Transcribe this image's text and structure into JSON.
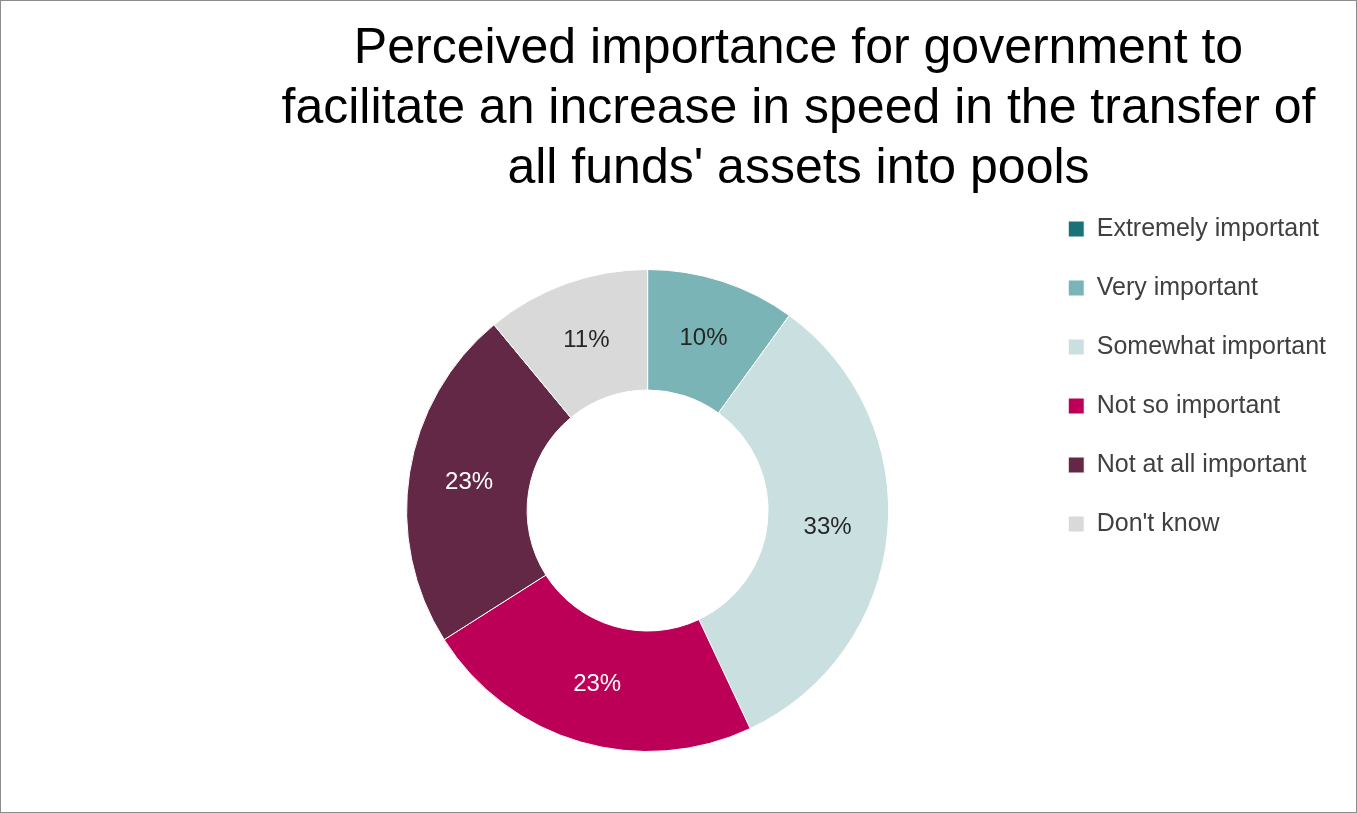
{
  "chart_data": {
    "type": "donut",
    "title": "Perceived importance for government to facilitate an increase in speed in the transfer of all funds' assets into pools",
    "categories": [
      "Extremely important",
      "Very important",
      "Somewhat important",
      "Not so important",
      "Not at all important",
      "Don't know"
    ],
    "values": [
      0,
      10,
      33,
      23,
      23,
      11
    ],
    "colors": [
      "#1a7278",
      "#7ab4b7",
      "#c9dfe0",
      "#bc0057",
      "#622845",
      "#d9d9d9"
    ],
    "value_labels": [
      null,
      "10%",
      "33%",
      "23%",
      "23%",
      "11%"
    ],
    "legend": "right"
  }
}
